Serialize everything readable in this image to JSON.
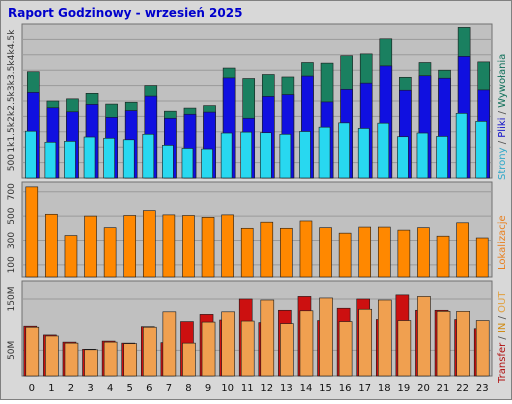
{
  "title": "Raport Godzinowy -  wrzesień 2025",
  "colors": {
    "frame_bg": "#d8d8d8",
    "plot_bg": "#c0c0c0",
    "title": "#0000cc",
    "grid": "#9a9a9a",
    "tick_text": "#333333",
    "strony": "#1a8060",
    "pliki": "#1010e0",
    "wywolania": "#28d8f0",
    "lokalizacje": "#ff8800",
    "transfer_in": "#cc1010",
    "transfer_out": "#f0a050",
    "label_strony": "#30a8c8",
    "label_pliki": "#1010c8",
    "label_wywolania": "#10705a",
    "label_lokalizacje": "#e88020",
    "label_transfer": "#b01010",
    "label_in": "#d08a10",
    "label_out": "#e0a040"
  },
  "side_labels": {
    "top": {
      "a": "Strony",
      "sep1": " / ",
      "b": "Pliki",
      "sep2": " / ",
      "c": "Wywołania"
    },
    "mid": {
      "a": "Lokalizacje"
    },
    "bot": {
      "a": "Transfer",
      "sep1": " / ",
      "b": "IN",
      "sep2": " / ",
      "c": "OUT"
    }
  },
  "chart_data": [
    {
      "id": "hits",
      "type": "bar",
      "ylim": [
        0,
        5000
      ],
      "y_ticks": [
        500,
        1000,
        1500,
        2000,
        2500,
        3000,
        3500,
        4000,
        4500
      ],
      "y_tick_labels": [
        "500",
        "1k",
        "1.5k",
        "2k",
        "2.5k",
        "3k",
        "3.5k",
        "4k",
        "4.5k"
      ],
      "categories": [
        "0",
        "1",
        "2",
        "3",
        "4",
        "5",
        "6",
        "7",
        "8",
        "9",
        "10",
        "11",
        "12",
        "13",
        "14",
        "15",
        "16",
        "17",
        "18",
        "19",
        "20",
        "21",
        "22",
        "23"
      ],
      "series": [
        {
          "name": "Wywołania",
          "values": [
            3450,
            2500,
            2570,
            2750,
            2400,
            2460,
            3000,
            2170,
            2270,
            2350,
            3570,
            3230,
            3360,
            3280,
            3750,
            3730,
            3970,
            4030,
            4520,
            3270,
            3750,
            3500,
            4890,
            3770
          ]
        },
        {
          "name": "Pliki",
          "values": [
            2780,
            2280,
            2150,
            2390,
            1970,
            2190,
            2660,
            1940,
            2070,
            2140,
            3250,
            1940,
            2650,
            2710,
            3310,
            2470,
            2880,
            3080,
            3640,
            2850,
            3320,
            3240,
            3950,
            2860
          ]
        },
        {
          "name": "Strony",
          "values": [
            1520,
            1160,
            1190,
            1330,
            1290,
            1240,
            1420,
            1060,
            960,
            940,
            1460,
            1490,
            1470,
            1420,
            1510,
            1650,
            1790,
            1610,
            1780,
            1340,
            1460,
            1350,
            2100,
            1840
          ]
        }
      ]
    },
    {
      "id": "visits",
      "type": "bar",
      "ylim": [
        0,
        780
      ],
      "y_ticks": [
        100,
        300,
        500,
        700
      ],
      "y_tick_labels": [
        "100",
        "300",
        "500",
        "700"
      ],
      "categories": [
        "0",
        "1",
        "2",
        "3",
        "4",
        "5",
        "6",
        "7",
        "8",
        "9",
        "10",
        "11",
        "12",
        "13",
        "14",
        "15",
        "16",
        "17",
        "18",
        "19",
        "20",
        "21",
        "22",
        "23"
      ],
      "series": [
        {
          "name": "Lokalizacje",
          "values": [
            740,
            515,
            340,
            500,
            405,
            505,
            545,
            510,
            505,
            490,
            510,
            400,
            450,
            400,
            460,
            405,
            360,
            410,
            410,
            385,
            405,
            335,
            445,
            320
          ]
        }
      ]
    },
    {
      "id": "transfer",
      "type": "bar",
      "ylim": [
        0,
        185
      ],
      "y_ticks": [
        50,
        150
      ],
      "y_tick_labels": [
        "50M",
        "150M"
      ],
      "categories": [
        "0",
        "1",
        "2",
        "3",
        "4",
        "5",
        "6",
        "7",
        "8",
        "9",
        "10",
        "11",
        "12",
        "13",
        "14",
        "15",
        "16",
        "17",
        "18",
        "19",
        "20",
        "21",
        "22",
        "23"
      ],
      "series": [
        {
          "name": "IN",
          "values": [
            97,
            80,
            66,
            52,
            68,
            64,
            96,
            65,
            106,
            120,
            109,
            150,
            104,
            128,
            155,
            108,
            132,
            150,
            110,
            158,
            128,
            128,
            110,
            92
          ]
        },
        {
          "name": "OUT",
          "values": [
            95,
            78,
            64,
            51,
            66,
            63,
            95,
            125,
            64,
            105,
            125,
            107,
            148,
            102,
            127,
            152,
            106,
            130,
            148,
            108,
            155,
            126,
            126,
            108
          ]
        }
      ]
    }
  ]
}
